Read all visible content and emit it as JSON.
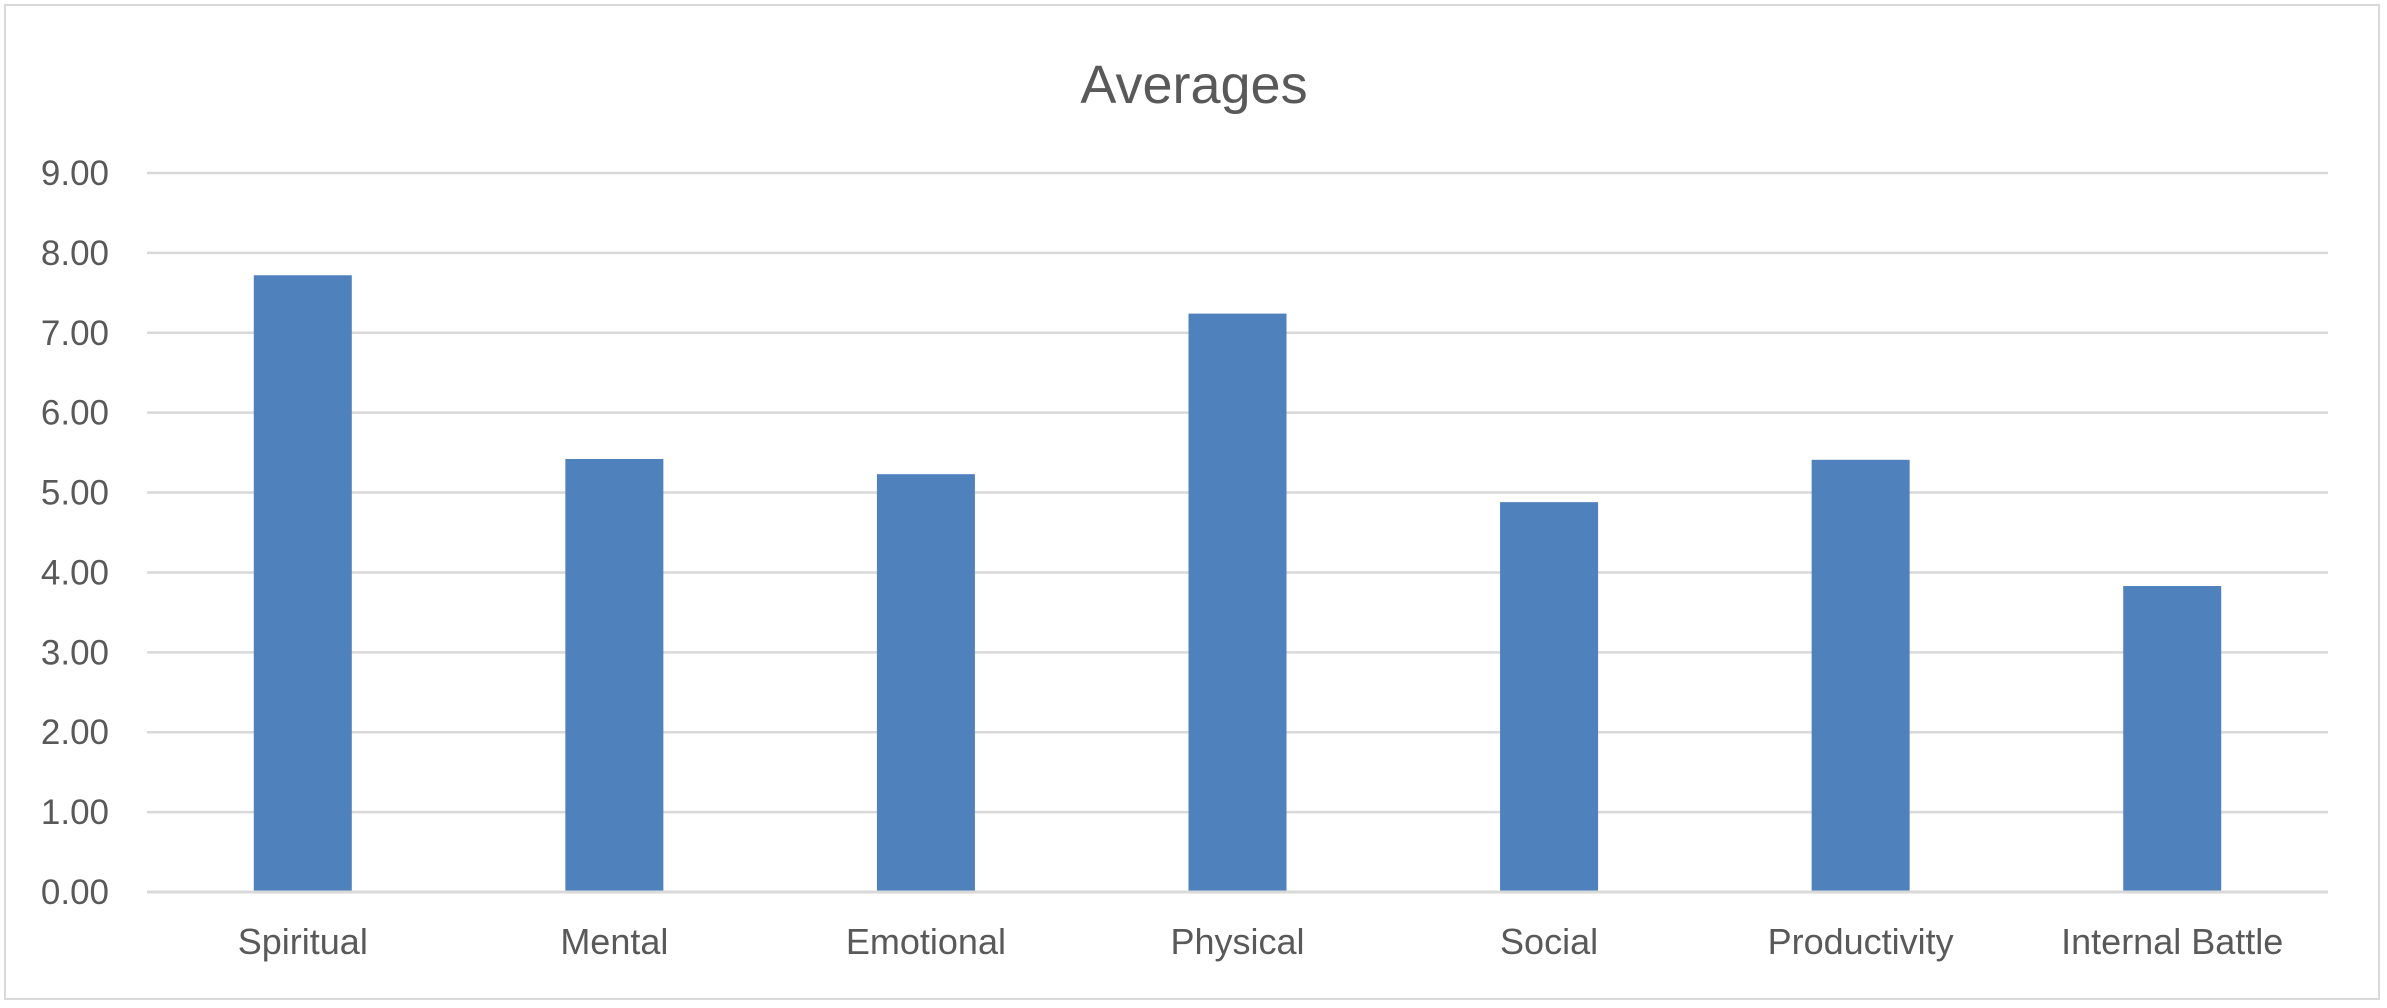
{
  "chart_data": {
    "type": "bar",
    "title": "Averages",
    "xlabel": "",
    "ylabel": "",
    "categories": [
      "Spiritual",
      "Mental",
      "Emotional",
      "Physical",
      "Social",
      "Productivity",
      "Internal Battle"
    ],
    "values": [
      7.72,
      5.42,
      5.23,
      7.24,
      4.88,
      5.41,
      3.83
    ],
    "ylim": [
      0,
      9
    ],
    "yticks": [
      "0.00",
      "1.00",
      "2.00",
      "3.00",
      "4.00",
      "5.00",
      "6.00",
      "7.00",
      "8.00",
      "9.00"
    ],
    "grid": true,
    "legend": "none",
    "bar_color": "#4f81bd"
  }
}
